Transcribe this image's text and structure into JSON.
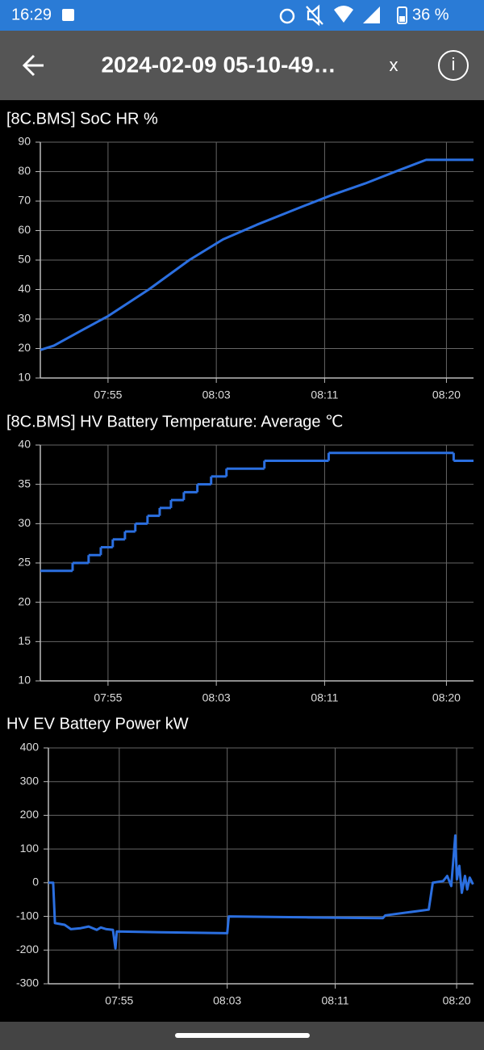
{
  "status_bar": {
    "time": "16:29",
    "battery": "36 %"
  },
  "header": {
    "title": "2024-02-09 05-10-49…",
    "close": "x",
    "info": "i"
  },
  "chart_data": [
    {
      "type": "line",
      "title": "[8C.BMS] SoC HR  %",
      "color": "#2b6fe0",
      "x": [
        "07:50:00",
        "07:51:00",
        "07:53:00",
        "07:55:00",
        "07:58:00",
        "08:01:00",
        "08:03:30",
        "08:06:00",
        "08:09:00",
        "08:11:30",
        "08:14:00",
        "08:16:30",
        "08:18:30",
        "08:22:00"
      ],
      "values": [
        19.5,
        21,
        26,
        31,
        40,
        50,
        57,
        62,
        67.5,
        72,
        76,
        80.5,
        84,
        84
      ],
      "xlim": [
        "07:50:00",
        "08:22:00"
      ],
      "xticks": [
        "07:55",
        "08:03",
        "08:11",
        "08:20"
      ],
      "ylim": [
        10,
        90
      ],
      "yticks": [
        10,
        20,
        30,
        40,
        50,
        60,
        70,
        80,
        90
      ],
      "grid": true
    },
    {
      "type": "line",
      "step": true,
      "title": "[8C.BMS] HV Battery Temperature: Average  ℃",
      "color": "#2b6fe0",
      "x": [
        "07:50:00",
        "07:52:23",
        "07:53:34",
        "07:54:28",
        "07:55:21",
        "07:56:15",
        "07:57:01",
        "07:57:55",
        "07:58:49",
        "07:59:39",
        "08:00:36",
        "08:01:36",
        "08:02:37",
        "08:03:45",
        "08:06:33",
        "08:11:18",
        "08:20:32",
        "08:22:00"
      ],
      "values": [
        24,
        25,
        26,
        27,
        28,
        29,
        30,
        31,
        32,
        33,
        34,
        35,
        36,
        37,
        38,
        39,
        38,
        38
      ],
      "xlim": [
        "07:50:00",
        "08:22:00"
      ],
      "xticks": [
        "07:55",
        "08:03",
        "08:11",
        "08:20"
      ],
      "ylim": [
        10,
        40
      ],
      "yticks": [
        10,
        15,
        20,
        25,
        30,
        35,
        40
      ],
      "grid": true
    },
    {
      "type": "line",
      "title": "HV EV Battery Power  kW",
      "color": "#2b6fe0",
      "x": [
        "07:49:45",
        "07:50:06",
        "07:50:14",
        "07:50:57",
        "07:51:25",
        "07:52:08",
        "07:52:44",
        "07:53:20",
        "07:53:38",
        "07:54:03",
        "07:54:32",
        "07:54:43",
        "07:54:49",
        "07:58:06",
        "08:03:00",
        "08:03:07",
        "08:08:51",
        "08:14:32",
        "08:14:43",
        "08:17:56",
        "08:18:14",
        "08:19:00",
        "08:19:18",
        "08:19:36",
        "08:19:54",
        "08:20:01",
        "08:20:12",
        "08:20:23",
        "08:20:37",
        "08:20:47",
        "08:20:58",
        "08:21:13"
      ],
      "values": [
        0,
        0,
        -120,
        -125,
        -138,
        -135,
        -130,
        -140,
        -133,
        -138,
        -140,
        -195,
        -145,
        -147,
        -150,
        -100,
        -103,
        -105,
        -97,
        -80,
        0,
        5,
        20,
        -10,
        140,
        10,
        50,
        -30,
        20,
        -20,
        15,
        -5
      ],
      "xlim": [
        "07:49:45",
        "08:21:15"
      ],
      "xticks": [
        "07:55",
        "08:03",
        "08:11",
        "08:20"
      ],
      "ylim": [
        -300,
        400
      ],
      "yticks": [
        -300,
        -200,
        -100,
        0,
        100,
        200,
        300,
        400
      ],
      "grid": true
    }
  ]
}
